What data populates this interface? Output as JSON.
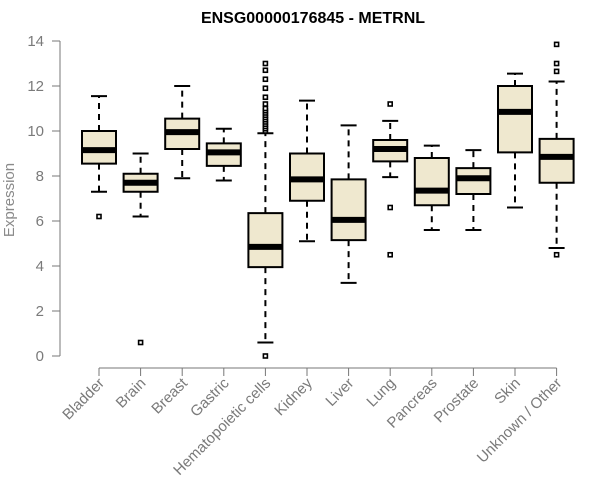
{
  "chart_data": {
    "type": "boxplot",
    "title": "ENSG00000176845 - METRNL",
    "ylabel": "Expression",
    "xlabel": "",
    "ylim": [
      0,
      14
    ],
    "yticks": [
      0,
      2,
      4,
      6,
      8,
      10,
      12,
      14
    ],
    "box_fill": "#EFE8CF",
    "grid": false,
    "series": [
      {
        "category": "Bladder",
        "whisker_low": 7.3,
        "q1": 8.55,
        "median": 9.15,
        "q3": 10.0,
        "whisker_high": 11.55,
        "outliers": [
          6.2
        ]
      },
      {
        "category": "Brain",
        "whisker_low": 6.2,
        "q1": 7.3,
        "median": 7.7,
        "q3": 8.1,
        "whisker_high": 9.0,
        "outliers": [
          0.6
        ]
      },
      {
        "category": "Breast",
        "whisker_low": 7.9,
        "q1": 9.2,
        "median": 9.95,
        "q3": 10.55,
        "whisker_high": 12.0,
        "outliers": []
      },
      {
        "category": "Gastric",
        "whisker_low": 7.8,
        "q1": 8.45,
        "median": 9.05,
        "q3": 9.45,
        "whisker_high": 10.1,
        "outliers": []
      },
      {
        "category": "Hematopoietic cells",
        "whisker_low": 0.6,
        "q1": 3.95,
        "median": 4.85,
        "q3": 6.35,
        "whisker_high": 9.9,
        "outliers": [
          0.0,
          10.0,
          10.1,
          10.2,
          10.3,
          10.4,
          10.5,
          10.6,
          10.7,
          10.8,
          10.9,
          11.0,
          11.2,
          11.5,
          11.9,
          12.3,
          12.7,
          13.0
        ]
      },
      {
        "category": "Kidney",
        "whisker_low": 5.1,
        "q1": 6.9,
        "median": 7.85,
        "q3": 9.0,
        "whisker_high": 11.35,
        "outliers": []
      },
      {
        "category": "Liver",
        "whisker_low": 3.25,
        "q1": 5.15,
        "median": 6.05,
        "q3": 7.85,
        "whisker_high": 10.25,
        "outliers": []
      },
      {
        "category": "Lung",
        "whisker_low": 7.95,
        "q1": 8.65,
        "median": 9.2,
        "q3": 9.6,
        "whisker_high": 10.45,
        "outliers": [
          11.2,
          6.6,
          4.5
        ]
      },
      {
        "category": "Pancreas",
        "whisker_low": 5.6,
        "q1": 6.7,
        "median": 7.35,
        "q3": 8.8,
        "whisker_high": 9.35,
        "outliers": []
      },
      {
        "category": "Prostate",
        "whisker_low": 5.6,
        "q1": 7.2,
        "median": 7.9,
        "q3": 8.35,
        "whisker_high": 9.15,
        "outliers": []
      },
      {
        "category": "Skin",
        "whisker_low": 6.6,
        "q1": 9.05,
        "median": 10.85,
        "q3": 12.0,
        "whisker_high": 12.55,
        "outliers": []
      },
      {
        "category": "Unknown / Other",
        "whisker_low": 4.8,
        "q1": 7.7,
        "median": 8.85,
        "q3": 9.65,
        "whisker_high": 12.2,
        "outliers": [
          4.5,
          12.65,
          13.0,
          13.85
        ]
      }
    ]
  }
}
